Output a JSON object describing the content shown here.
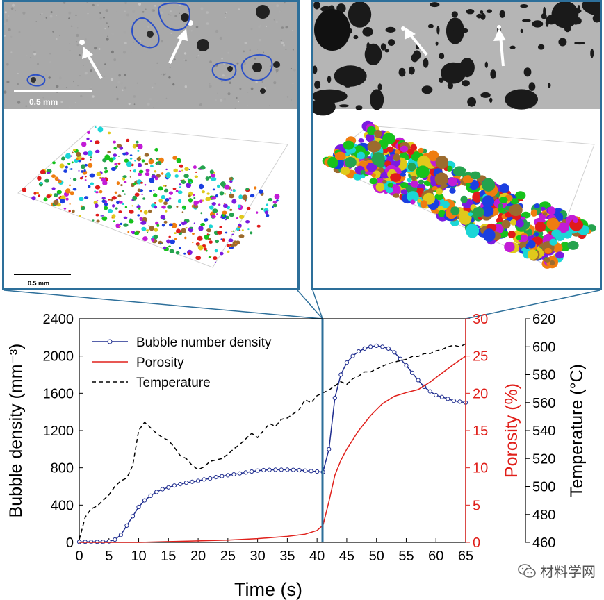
{
  "micrographs": {
    "left": {
      "scalebar_ct": "0.5 mm",
      "scalebar_3d": "0.5 mm"
    },
    "right": {}
  },
  "watermark": {
    "text": "材料学网",
    "icon": "wechat-icon"
  },
  "colors": {
    "frame": "#2d6f9a",
    "density": "#1f2d8f",
    "porosity": "#e0201b",
    "temperature": "#000000"
  },
  "chart_data": {
    "type": "line",
    "xlabel": "Time (s)",
    "ylabel_left": "Bubble density (mm⁻³)",
    "ylabel_porosity": "Porosity (%)",
    "ylabel_temperature": "Temperature (°C)",
    "xlim": [
      0,
      65
    ],
    "x_ticks": [
      "0",
      "5",
      "10",
      "15",
      "20",
      "25",
      "30",
      "35",
      "40",
      "45",
      "50",
      "55",
      "60",
      "65"
    ],
    "y_left_lim": [
      0,
      2400
    ],
    "y_left_ticks": [
      "0",
      "400",
      "800",
      "1200",
      "1600",
      "2000",
      "2400"
    ],
    "y_porosity_lim": [
      0,
      30
    ],
    "y_porosity_ticks": [
      "0",
      "5",
      "10",
      "15",
      "20",
      "25",
      "30"
    ],
    "y_temp_lim": [
      460,
      620
    ],
    "y_temp_ticks": [
      "460",
      "480",
      "500",
      "520",
      "540",
      "560",
      "580",
      "600",
      "620"
    ],
    "legend_position": "top-left",
    "series": [
      {
        "name": "Bubble number density",
        "axis": "left",
        "x": [
          0,
          1,
          2,
          3,
          4,
          5,
          6,
          7,
          8,
          9,
          10,
          11,
          12,
          13,
          14,
          15,
          16,
          17,
          18,
          19,
          20,
          21,
          22,
          23,
          24,
          25,
          26,
          27,
          28,
          29,
          30,
          31,
          32,
          33,
          34,
          35,
          36,
          37,
          38,
          39,
          40,
          41,
          42,
          43,
          44,
          45,
          46,
          47,
          48,
          49,
          50,
          51,
          52,
          53,
          54,
          55,
          56,
          57,
          58,
          59,
          60,
          61,
          62,
          63,
          64,
          65
        ],
        "values": [
          5,
          5,
          5,
          5,
          5,
          10,
          30,
          80,
          180,
          280,
          380,
          450,
          500,
          540,
          570,
          590,
          610,
          625,
          640,
          650,
          660,
          675,
          685,
          700,
          710,
          720,
          730,
          740,
          750,
          760,
          770,
          775,
          778,
          780,
          780,
          780,
          778,
          775,
          770,
          765,
          760,
          755,
          1000,
          1550,
          1800,
          1930,
          2000,
          2050,
          2080,
          2100,
          2110,
          2100,
          2080,
          2040,
          1970,
          1900,
          1820,
          1740,
          1670,
          1620,
          1580,
          1560,
          1540,
          1520,
          1510,
          1500
        ]
      },
      {
        "name": "Porosity",
        "axis": "porosity",
        "x": [
          0,
          5,
          10,
          15,
          20,
          25,
          30,
          35,
          38,
          40,
          41,
          42,
          43,
          44,
          45,
          47,
          49,
          51,
          53,
          55,
          57,
          59,
          61,
          63,
          65
        ],
        "values": [
          0,
          0,
          0,
          0.1,
          0.2,
          0.3,
          0.5,
          0.8,
          1.1,
          1.6,
          2.3,
          5.5,
          9,
          11,
          12.5,
          15,
          17,
          18.6,
          19.6,
          20.1,
          20.5,
          21.5,
          22.7,
          23.9,
          25
        ]
      },
      {
        "name": "Temperature",
        "axis": "temperature",
        "x": [
          0,
          1,
          2,
          3,
          4,
          5,
          6,
          7,
          8,
          9,
          10,
          11,
          12,
          13,
          14,
          15,
          16,
          17,
          18,
          19,
          20,
          21,
          22,
          23,
          24,
          25,
          26,
          27,
          28,
          29,
          30,
          31,
          32,
          33,
          34,
          35,
          36,
          37,
          38,
          39,
          40,
          41,
          42,
          43,
          44,
          45,
          46,
          47,
          48,
          49,
          50,
          51,
          52,
          53,
          54,
          55,
          56,
          57,
          58,
          59,
          60,
          61,
          62,
          63,
          64,
          65
        ],
        "values": [
          462,
          478,
          484,
          486,
          490,
          494,
          500,
          504,
          506,
          515,
          540,
          546,
          542,
          538,
          535,
          533,
          528,
          522,
          520,
          515,
          512,
          514,
          518,
          519,
          520,
          523,
          527,
          530,
          534,
          538,
          535,
          540,
          545,
          543,
          548,
          549,
          552,
          555,
          562,
          560,
          565,
          567,
          569,
          572,
          575,
          573,
          577,
          579,
          582,
          582,
          584,
          586,
          588,
          589,
          590,
          591,
          593,
          593,
          595,
          595,
          597,
          598,
          600,
          601,
          600,
          602
        ]
      }
    ]
  }
}
